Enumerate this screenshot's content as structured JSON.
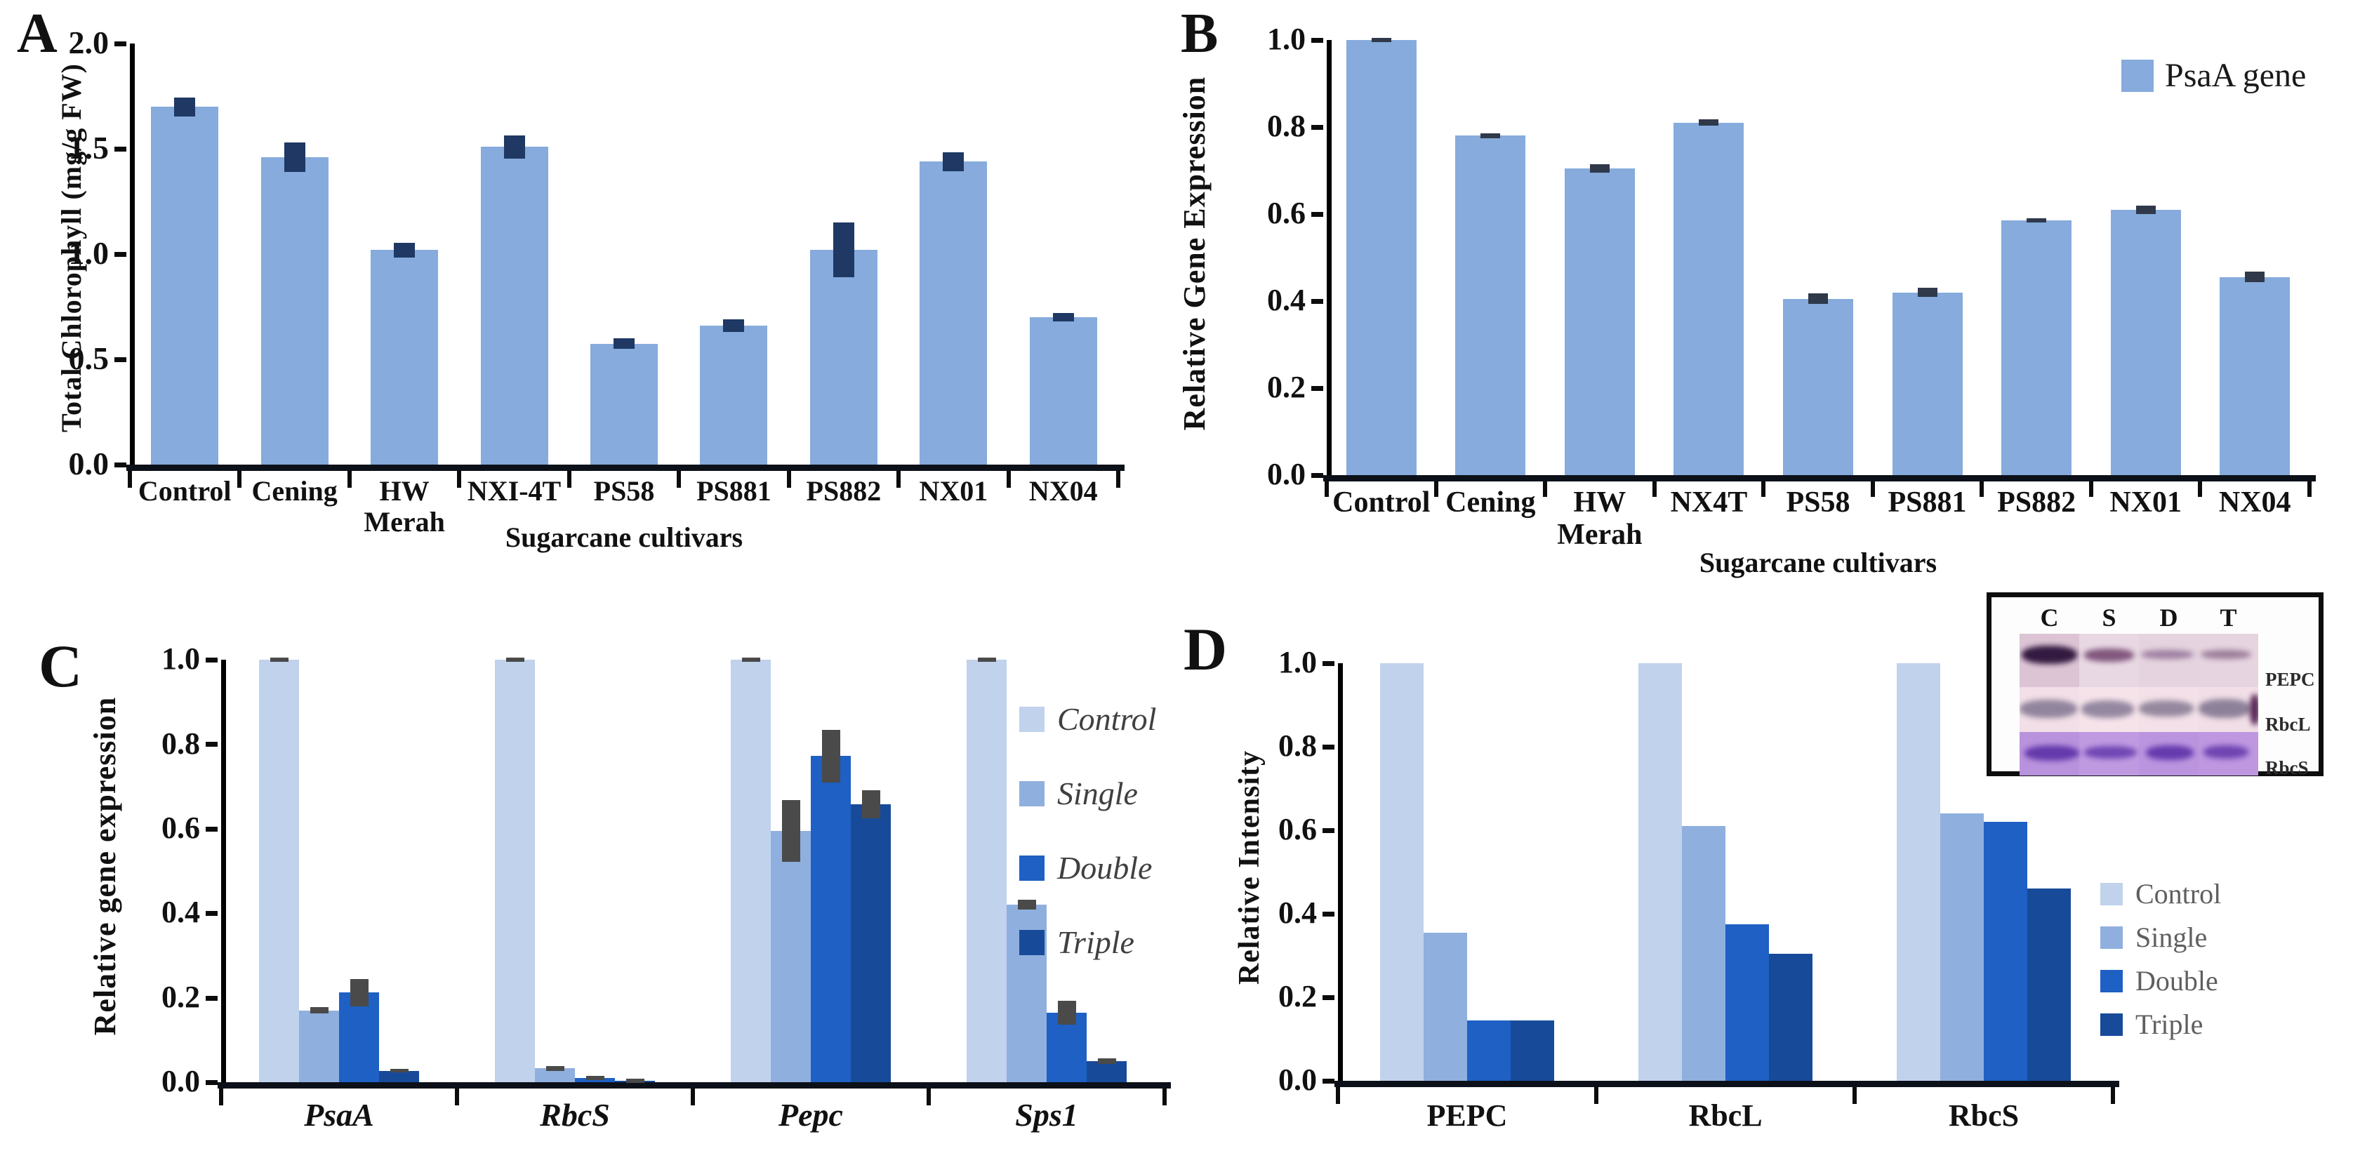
{
  "figure": {
    "description": "Four-panel bar chart figure on sugarcane cultivars and gene expression with western blot inset"
  },
  "chart_data": [
    {
      "id": "A",
      "panel_label": "A",
      "type": "bar",
      "ylabel": "Total Chlorophyll (mg/g FW)",
      "xlabel": "Sugarcane cultivars",
      "categories": [
        "Control",
        "Cening",
        "HW\nMerah",
        "NXI-4T",
        "PS58",
        "PS881",
        "PS882",
        "NX01",
        "NX04"
      ],
      "values": [
        1.7,
        1.46,
        1.02,
        1.51,
        0.575,
        0.66,
        1.02,
        1.44,
        0.7
      ],
      "errors": [
        0.045,
        0.07,
        0.035,
        0.055,
        0.025,
        0.03,
        0.13,
        0.045,
        0.02
      ],
      "ylim": [
        0,
        2.0
      ],
      "yticks": [
        {
          "v": 2.0,
          "label": "2.0"
        },
        {
          "v": 1.5,
          "label": "1.5"
        },
        {
          "v": 1.0,
          "label": "1.0"
        },
        {
          "v": 0.5,
          "label": "0.5"
        },
        {
          "v": 0.0,
          "label": "0.0"
        }
      ],
      "bar_color": "#86ABDC",
      "error_color": "#1F3864",
      "grid": false
    },
    {
      "id": "B",
      "panel_label": "B",
      "type": "bar",
      "ylabel": "Relative Gene Expression",
      "xlabel": "Sugarcane cultivars",
      "legend": [
        "PsaA gene"
      ],
      "legend_position": "top-right",
      "categories": [
        "Control",
        "Cening",
        "HW\nMerah",
        "NX4T",
        "PS58",
        "PS881",
        "PS882",
        "NX01",
        "NX04"
      ],
      "values": [
        1.0,
        0.78,
        0.705,
        0.81,
        0.405,
        0.42,
        0.585,
        0.61,
        0.455
      ],
      "errors": [
        0.004,
        0.006,
        0.01,
        0.007,
        0.012,
        0.01,
        0.005,
        0.01,
        0.012
      ],
      "ylim": [
        0,
        1.0
      ],
      "yticks": [
        {
          "v": 1.0,
          "label": "1.0"
        },
        {
          "v": 0.8,
          "label": "0.8"
        },
        {
          "v": 0.6,
          "label": "0.6"
        },
        {
          "v": 0.4,
          "label": "0.4"
        },
        {
          "v": 0.2,
          "label": "0.2"
        },
        {
          "v": 0.0,
          "label": "0.0"
        }
      ],
      "bar_color": "#86ABDC",
      "error_color": "#30394a",
      "grid": false
    },
    {
      "id": "C",
      "panel_label": "C",
      "type": "grouped-bar",
      "ylabel": "Relative gene expression",
      "xlabel": "",
      "categories": [
        "PsaA",
        "RbcS",
        "Pepc",
        "Sps1"
      ],
      "series": [
        {
          "name": "Control",
          "color": "#C0D2EC",
          "values": [
            1.0,
            1.0,
            1.0,
            1.0
          ],
          "errors": [
            0.005,
            0.004,
            0.005,
            0.005
          ]
        },
        {
          "name": "Single",
          "color": "#8FAFDE",
          "values": [
            0.17,
            0.033,
            0.595,
            0.42
          ],
          "errors": [
            0.007,
            0.006,
            0.073,
            0.012
          ]
        },
        {
          "name": "Double",
          "color": "#1E60C4",
          "values": [
            0.212,
            0.01,
            0.772,
            0.165
          ],
          "errors": [
            0.032,
            0.005,
            0.062,
            0.028
          ]
        },
        {
          "name": "Triple",
          "color": "#174B99",
          "values": [
            0.027,
            0.004,
            0.658,
            0.05
          ],
          "errors": [
            0.004,
            0.002,
            0.033,
            0.006
          ]
        }
      ],
      "ylim": [
        0,
        1.0
      ],
      "yticks": [
        {
          "v": 1.0,
          "label": "1.0"
        },
        {
          "v": 0.8,
          "label": "0.8"
        },
        {
          "v": 0.6,
          "label": "0.6"
        },
        {
          "v": 0.4,
          "label": "0.4"
        },
        {
          "v": 0.2,
          "label": "0.2"
        },
        {
          "v": 0.0,
          "label": "0.0"
        }
      ],
      "error_color": "#4a4a4a",
      "legend_position": "right",
      "grid": false
    },
    {
      "id": "D",
      "panel_label": "D",
      "type": "grouped-bar",
      "ylabel": "Relative Intensity",
      "xlabel": "",
      "categories": [
        "PEPC",
        "RbcL",
        "RbcS"
      ],
      "series": [
        {
          "name": "Control",
          "color": "#C0D2EC",
          "values": [
            1.0,
            1.0,
            1.0
          ]
        },
        {
          "name": "Single",
          "color": "#8FAFDE",
          "values": [
            0.355,
            0.61,
            0.64
          ]
        },
        {
          "name": "Double",
          "color": "#1E60C4",
          "values": [
            0.145,
            0.375,
            0.62
          ]
        },
        {
          "name": "Triple",
          "color": "#174B99",
          "values": [
            0.145,
            0.305,
            0.46
          ]
        }
      ],
      "ylim": [
        0,
        1.0
      ],
      "yticks": [
        {
          "v": 1.0,
          "label": "1.0"
        },
        {
          "v": 0.8,
          "label": "0.8"
        },
        {
          "v": 0.6,
          "label": "0.6"
        },
        {
          "v": 0.4,
          "label": "0.4"
        },
        {
          "v": 0.2,
          "label": "0.2"
        },
        {
          "v": 0.0,
          "label": "0.0"
        }
      ],
      "error_color": "#4a4a4a",
      "legend_position": "right",
      "grid": false
    }
  ],
  "blot_inset": {
    "lanes": [
      "C",
      "S",
      "D",
      "T"
    ],
    "rows": [
      {
        "label": "PEPC",
        "bg": "linear-gradient(90deg,#DCC4D4 0% 25%,#E8D8E3 25% 50%,#E5D3DF 50% 75%,#E6D4E0 75% 100%)",
        "bands": [
          {
            "x": 1,
            "w": 23,
            "y": 22,
            "h": 34,
            "c": "#2A1139",
            "o": 0.95
          },
          {
            "x": 27,
            "w": 21,
            "y": 28,
            "h": 24,
            "c": "#70416C",
            "o": 0.85
          },
          {
            "x": 51,
            "w": 22,
            "y": 30,
            "h": 18,
            "c": "#8D6C92",
            "o": 0.8
          },
          {
            "x": 76,
            "w": 21,
            "y": 30,
            "h": 18,
            "c": "#8A6889",
            "o": 0.8
          }
        ]
      },
      {
        "label": "RbcL",
        "bg": "linear-gradient(90deg,#F2DFE7 0% 25%,#F6E3EA 25% 50%,#F3E0E8 50% 75%,#F1DEE6 75% 100%)",
        "bands": [
          {
            "x": 0,
            "w": 24,
            "y": 28,
            "h": 40,
            "c": "#877B95",
            "o": 0.9
          },
          {
            "x": 26,
            "w": 22,
            "y": 30,
            "h": 38,
            "c": "#8A7E98",
            "o": 0.9
          },
          {
            "x": 50,
            "w": 23,
            "y": 30,
            "h": 36,
            "c": "#857992",
            "o": 0.85
          },
          {
            "x": 75,
            "w": 22,
            "y": 26,
            "h": 42,
            "c": "#837791",
            "o": 0.9
          },
          {
            "x": 96.5,
            "w": 4,
            "y": 15,
            "h": 70,
            "c": "#4F1D4E",
            "o": 0.95
          }
        ]
      },
      {
        "label": "RbcS",
        "bg": "linear-gradient(90deg,#B992DD 0% 25%,#C09AE1 25% 50%,#BB94DF 50% 75%,#BE97E0 75% 100%)",
        "bands": [
          {
            "x": 2,
            "w": 23,
            "y": 30,
            "h": 36,
            "c": "#5B30A6",
            "o": 0.9
          },
          {
            "x": 27,
            "w": 22,
            "y": 32,
            "h": 30,
            "c": "#6238AC",
            "o": 0.85
          },
          {
            "x": 53,
            "w": 20,
            "y": 30,
            "h": 34,
            "c": "#5C31A8",
            "o": 0.9
          },
          {
            "x": 77,
            "w": 19,
            "y": 31,
            "h": 30,
            "c": "#6136A9",
            "o": 0.85
          }
        ]
      }
    ]
  }
}
